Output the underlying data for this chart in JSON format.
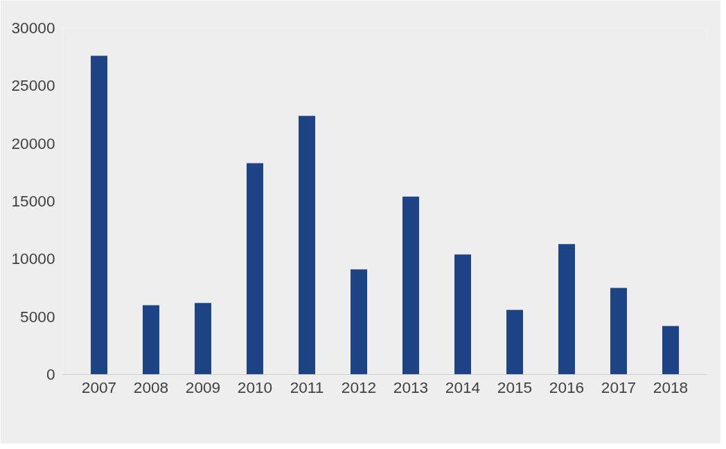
{
  "chart_data": {
    "type": "bar",
    "categories": [
      "2007",
      "2008",
      "2009",
      "2010",
      "2011",
      "2012",
      "2013",
      "2014",
      "2015",
      "2016",
      "2017",
      "2018"
    ],
    "values": [
      27600,
      6000,
      6200,
      18300,
      22400,
      9100,
      15400,
      10400,
      5600,
      11300,
      7500,
      4200
    ],
    "color": "#1f4486",
    "ylim": [
      0,
      30000
    ],
    "yticks": [
      0,
      5000,
      10000,
      15000,
      20000,
      25000,
      30000
    ],
    "grid": false
  }
}
